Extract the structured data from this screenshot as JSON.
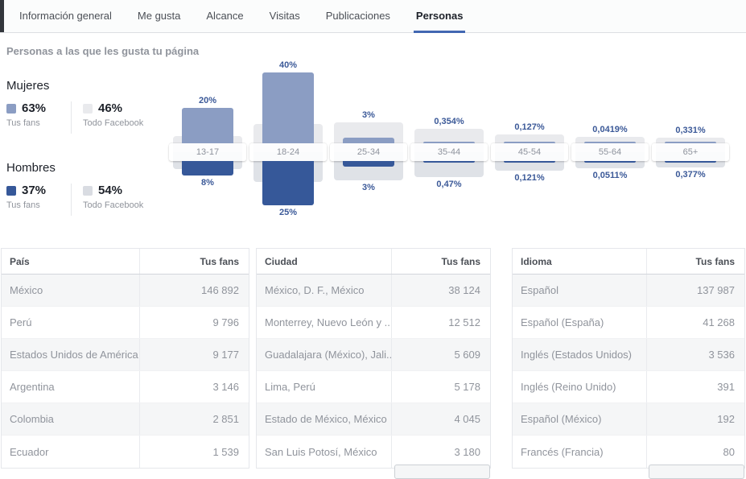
{
  "colors": {
    "accent": "#4267b2",
    "chart_label_blue": "#3b5998"
  },
  "tabs": {
    "items": [
      {
        "label": "Información general"
      },
      {
        "label": "Me gusta"
      },
      {
        "label": "Alcance"
      },
      {
        "label": "Visitas"
      },
      {
        "label": "Publicaciones"
      },
      {
        "label": "Personas",
        "active": true
      }
    ]
  },
  "section": {
    "title": "Personas a las que les gusta tu página"
  },
  "legend": {
    "women": {
      "title": "Mujeres",
      "fans_pct": "63%",
      "fans_label": "Tus fans",
      "fans_color": "#8b9dc3",
      "all_pct": "46%",
      "all_label": "Todo Facebook",
      "all_color": "#e9eaed"
    },
    "men": {
      "title": "Hombres",
      "fans_pct": "37%",
      "fans_label": "Tus fans",
      "fans_color": "#365899",
      "all_pct": "54%",
      "all_label": "Todo Facebook",
      "all_color": "#d9dce2"
    }
  },
  "chart_data": {
    "type": "bar",
    "title": "Personas a las que les gusta tu página",
    "unit": "%",
    "categories": [
      "13-17",
      "18-24",
      "25-34",
      "35-44",
      "45-54",
      "55-64",
      "65+"
    ],
    "series": [
      {
        "name": "Mujeres · Tus fans",
        "color": "#8b9dc3",
        "values": [
          20,
          40,
          3,
          0.354,
          0.127,
          0.0419,
          0.331
        ],
        "labels": [
          "20%",
          "40%",
          "3%",
          "0,354%",
          "0,127%",
          "0,0419%",
          "0,331%"
        ]
      },
      {
        "name": "Hombres · Tus fans",
        "color": "#365899",
        "values": [
          8,
          25,
          3,
          0.47,
          0.121,
          0.0511,
          0.377
        ],
        "labels": [
          "8%",
          "25%",
          "3%",
          "0,47%",
          "0,121%",
          "0,0511%",
          "0,377%"
        ]
      },
      {
        "name": "Mujeres · Todo Facebook (sin etiqueta, estimado)",
        "color": "#e9eaed",
        "estimated": true,
        "values": [
          4,
          11,
          12,
          8,
          5,
          3.6,
          3.2
        ]
      },
      {
        "name": "Hombres · Todo Facebook (sin etiqueta, estimado)",
        "color": "#dfe2e7",
        "estimated": true,
        "values": [
          4.5,
          11.8,
          10.9,
          9.1,
          5.5,
          4.1,
          3.6
        ]
      }
    ]
  },
  "tables": [
    {
      "headers": [
        "País",
        "Tus fans"
      ],
      "rows": [
        [
          "México",
          "146 892"
        ],
        [
          "Perú",
          "9 796"
        ],
        [
          "Estados Unidos de América",
          "9 177"
        ],
        [
          "Argentina",
          "3 146"
        ],
        [
          "Colombia",
          "2 851"
        ],
        [
          "Ecuador",
          "1 539"
        ]
      ]
    },
    {
      "headers": [
        "Ciudad",
        "Tus fans"
      ],
      "rows": [
        [
          "México, D. F., México",
          "38 124"
        ],
        [
          "Monterrey, Nuevo León y ...",
          "12 512"
        ],
        [
          "Guadalajara (México), Jali...",
          "5 609"
        ],
        [
          "Lima, Perú",
          "5 178"
        ],
        [
          "Estado de México, México",
          "4 045"
        ],
        [
          "San Luis Potosí, México",
          "3 180"
        ]
      ]
    },
    {
      "headers": [
        "Idioma",
        "Tus fans"
      ],
      "rows": [
        [
          "Español",
          "137 987"
        ],
        [
          "Español (España)",
          "41 268"
        ],
        [
          "Inglés (Estados Unidos)",
          "3 536"
        ],
        [
          "Inglés (Reino Unido)",
          "391"
        ],
        [
          "Español (México)",
          "192"
        ],
        [
          "Francés (Francia)",
          "80"
        ]
      ]
    }
  ]
}
